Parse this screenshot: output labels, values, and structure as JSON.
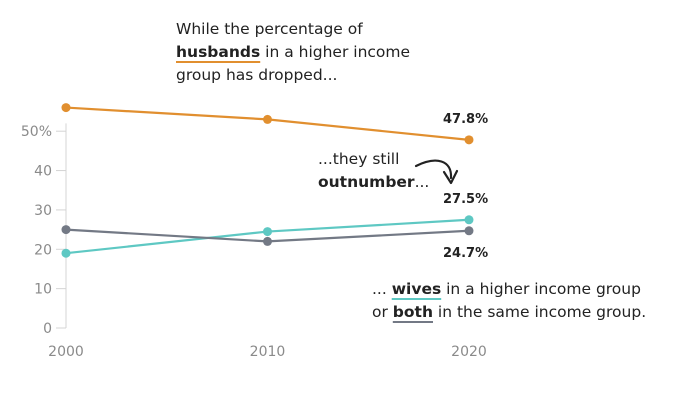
{
  "colors": {
    "husbands": "#e18f2f",
    "wives": "#5ec8c3",
    "both": "#737985",
    "axis": "#d4d4d4",
    "tick_text": "#8a8a8a",
    "text": "#222222"
  },
  "chart_data": {
    "type": "line",
    "x": [
      2000,
      2010,
      2020
    ],
    "ylim": [
      0,
      55
    ],
    "yticks": [
      0,
      10,
      20,
      30,
      40,
      50
    ],
    "ytick_labels": [
      "0",
      "10",
      "20",
      "30",
      "40",
      "50%"
    ],
    "xtick_labels": [
      "2000",
      "2010",
      "2020"
    ],
    "grid": false,
    "series": [
      {
        "key": "husbands",
        "values": [
          56,
          53,
          47.8
        ]
      },
      {
        "key": "wives",
        "values": [
          19,
          24.5,
          27.5
        ]
      },
      {
        "key": "both",
        "values": [
          25,
          22,
          24.7
        ]
      }
    ],
    "data_labels": [
      {
        "key": "husbands",
        "text": "47.8%"
      },
      {
        "key": "wives",
        "text": "27.5%"
      },
      {
        "key": "both",
        "text": "24.7%"
      }
    ]
  },
  "annotations": {
    "top": {
      "line1": "While the percentage of",
      "line2_key": "husbands",
      "line2_rest": " in a higher income",
      "line3": "group has dropped..."
    },
    "middle": {
      "line1": "...they still",
      "line2_key": "outnumber",
      "line2_rest": "..."
    },
    "bottom": {
      "line1_pre": "... ",
      "line1_key": "wives",
      "line1_rest": " in a higher income group",
      "line2_pre": "or ",
      "line2_key": "both",
      "line2_rest": " in the same income group."
    }
  }
}
